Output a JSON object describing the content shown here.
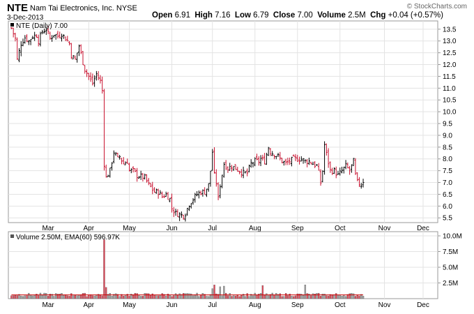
{
  "header": {
    "symbol": "NTE",
    "company": "Nam Tai Electronics, Inc. NYSE",
    "date": "3-Dec-2013",
    "open_label": "Open",
    "open": "6.91",
    "high_label": "High",
    "high": "7.16",
    "low_label": "Low",
    "low": "6.79",
    "close_label": "Close",
    "close": "7.00",
    "volume_label": "Volume",
    "volume": "2.5M",
    "chg_label": "Chg",
    "chg": "+0.04 (+0.57%)",
    "copyright": "© StockCharts.com"
  },
  "colors": {
    "up": "#000000",
    "down": "#c8102e",
    "volume_up": "#a0a0a0",
    "volume_down": "#e04a5a",
    "ema": "#cc0000",
    "grid": "#e3e3e3",
    "frame": "#999999"
  },
  "chart_data": [
    {
      "type": "line",
      "title": "NTE (Daily) 7.00",
      "y_ticks": [
        5.5,
        6.0,
        6.5,
        7.0,
        7.5,
        8.0,
        8.5,
        9.0,
        9.5,
        10.0,
        10.5,
        11.0,
        11.5,
        12.0,
        12.5,
        13.0,
        13.5
      ],
      "y_tick_labels": [
        "5.5",
        "6.0",
        "6.5",
        "7.0",
        "7.5",
        "8.0",
        "8.5",
        "9.0",
        "9.5",
        "10.0",
        "10.5",
        "11.0",
        "11.5",
        "12.0",
        "12.5",
        "13.0",
        "13.5"
      ],
      "ylim": [
        5.3,
        13.85
      ],
      "x_month_labels": [
        "Mar",
        "Apr",
        "May",
        "Jun",
        "Jul",
        "Aug",
        "Sep",
        "Oct",
        "Nov",
        "Dec"
      ],
      "x_month_index": [
        19,
        40,
        61,
        83,
        104,
        126,
        148,
        170,
        193,
        213
      ],
      "grid": true,
      "points": [
        [
          0,
          13.55
        ],
        [
          2,
          13.1
        ],
        [
          3,
          12.2
        ],
        [
          5,
          12.9
        ],
        [
          7,
          13.15
        ],
        [
          9,
          13.0
        ],
        [
          11,
          13.2
        ],
        [
          13,
          13.25
        ],
        [
          14,
          13.0
        ],
        [
          16,
          13.4
        ],
        [
          18,
          13.5
        ],
        [
          20,
          13.1
        ],
        [
          22,
          13.3
        ],
        [
          24,
          13.2
        ],
        [
          26,
          13.3
        ],
        [
          28,
          13.1
        ],
        [
          30,
          12.9
        ],
        [
          31,
          12.4
        ],
        [
          33,
          12.2
        ],
        [
          35,
          12.8
        ],
        [
          37,
          12.1
        ],
        [
          38,
          11.8
        ],
        [
          40,
          11.5
        ],
        [
          42,
          11.2
        ],
        [
          44,
          11.6
        ],
        [
          46,
          11.3
        ],
        [
          47,
          10.9
        ],
        [
          48,
          7.8
        ],
        [
          49,
          7.2
        ],
        [
          51,
          7.5
        ],
        [
          53,
          8.3
        ],
        [
          55,
          8.0
        ],
        [
          56,
          8.1
        ],
        [
          58,
          7.8
        ],
        [
          60,
          7.9
        ],
        [
          61,
          7.5
        ],
        [
          63,
          7.5
        ],
        [
          65,
          7.3
        ],
        [
          67,
          7.25
        ],
        [
          69,
          7.2
        ],
        [
          71,
          6.9
        ],
        [
          72,
          6.8
        ],
        [
          74,
          6.6
        ],
        [
          76,
          6.6
        ],
        [
          78,
          6.4
        ],
        [
          80,
          6.5
        ],
        [
          82,
          6.3
        ],
        [
          83,
          5.9
        ],
        [
          85,
          5.7
        ],
        [
          87,
          5.65
        ],
        [
          89,
          5.6
        ],
        [
          90,
          5.7
        ],
        [
          92,
          6.1
        ],
        [
          94,
          6.3
        ],
        [
          96,
          6.5
        ],
        [
          98,
          6.6
        ],
        [
          100,
          6.6
        ],
        [
          102,
          6.9
        ],
        [
          103,
          7.5
        ],
        [
          104,
          8.3
        ],
        [
          105,
          7.3
        ],
        [
          106,
          7.0
        ],
        [
          107,
          6.3
        ],
        [
          108,
          6.9
        ],
        [
          110,
          7.8
        ],
        [
          112,
          7.6
        ],
        [
          114,
          7.7
        ],
        [
          116,
          7.6
        ],
        [
          118,
          7.5
        ],
        [
          120,
          7.4
        ],
        [
          122,
          7.4
        ],
        [
          124,
          7.8
        ],
        [
          126,
          7.9
        ],
        [
          128,
          7.9
        ],
        [
          129,
          8.0
        ],
        [
          131,
          7.9
        ],
        [
          133,
          8.5
        ],
        [
          134,
          8.3
        ],
        [
          136,
          8.2
        ],
        [
          138,
          8.1
        ],
        [
          140,
          7.9
        ],
        [
          142,
          7.8
        ],
        [
          144,
          7.9
        ],
        [
          146,
          8.0
        ],
        [
          148,
          8.0
        ],
        [
          150,
          8.0
        ],
        [
          152,
          7.9
        ],
        [
          154,
          7.9
        ],
        [
          156,
          7.8
        ],
        [
          158,
          7.7
        ],
        [
          159,
          7.4
        ],
        [
          160,
          7.0
        ],
        [
          161,
          7.5
        ],
        [
          162,
          8.6
        ],
        [
          163,
          8.2
        ],
        [
          165,
          7.5
        ],
        [
          167,
          7.5
        ],
        [
          169,
          7.3
        ],
        [
          171,
          7.5
        ],
        [
          173,
          7.7
        ],
        [
          175,
          7.5
        ],
        [
          177,
          7.9
        ],
        [
          178,
          7.3
        ],
        [
          179,
          7.0
        ],
        [
          181,
          6.9
        ],
        [
          182,
          7.0
        ]
      ]
    },
    {
      "type": "bar",
      "title": "Volume 2.50M, EMA(60) 596.97K",
      "y_ticks": [
        2.5,
        5.0,
        7.5,
        10.0
      ],
      "y_tick_labels": [
        "2.5M",
        "5.0M",
        "7.5M",
        "10.0M"
      ],
      "ylim": [
        0,
        10
      ],
      "unit": "M",
      "x_month_labels": [
        "Mar",
        "Apr",
        "May",
        "Jun",
        "Jul",
        "Aug",
        "Sep",
        "Oct",
        "Nov",
        "Dec"
      ],
      "x_month_index": [
        19,
        40,
        61,
        83,
        104,
        126,
        148,
        170,
        193,
        213
      ],
      "spikes": [
        [
          48,
          9.4
        ],
        [
          49,
          1.8
        ],
        [
          104,
          1.6
        ],
        [
          105,
          2.2
        ],
        [
          108,
          1.9
        ],
        [
          110,
          2.0
        ],
        [
          130,
          2.1
        ],
        [
          152,
          2.2
        ],
        [
          188,
          1.9
        ],
        [
          205,
          2.0
        ],
        [
          213,
          2.5
        ]
      ],
      "baseline_volume": 0.6,
      "ema": 0.6
    }
  ]
}
